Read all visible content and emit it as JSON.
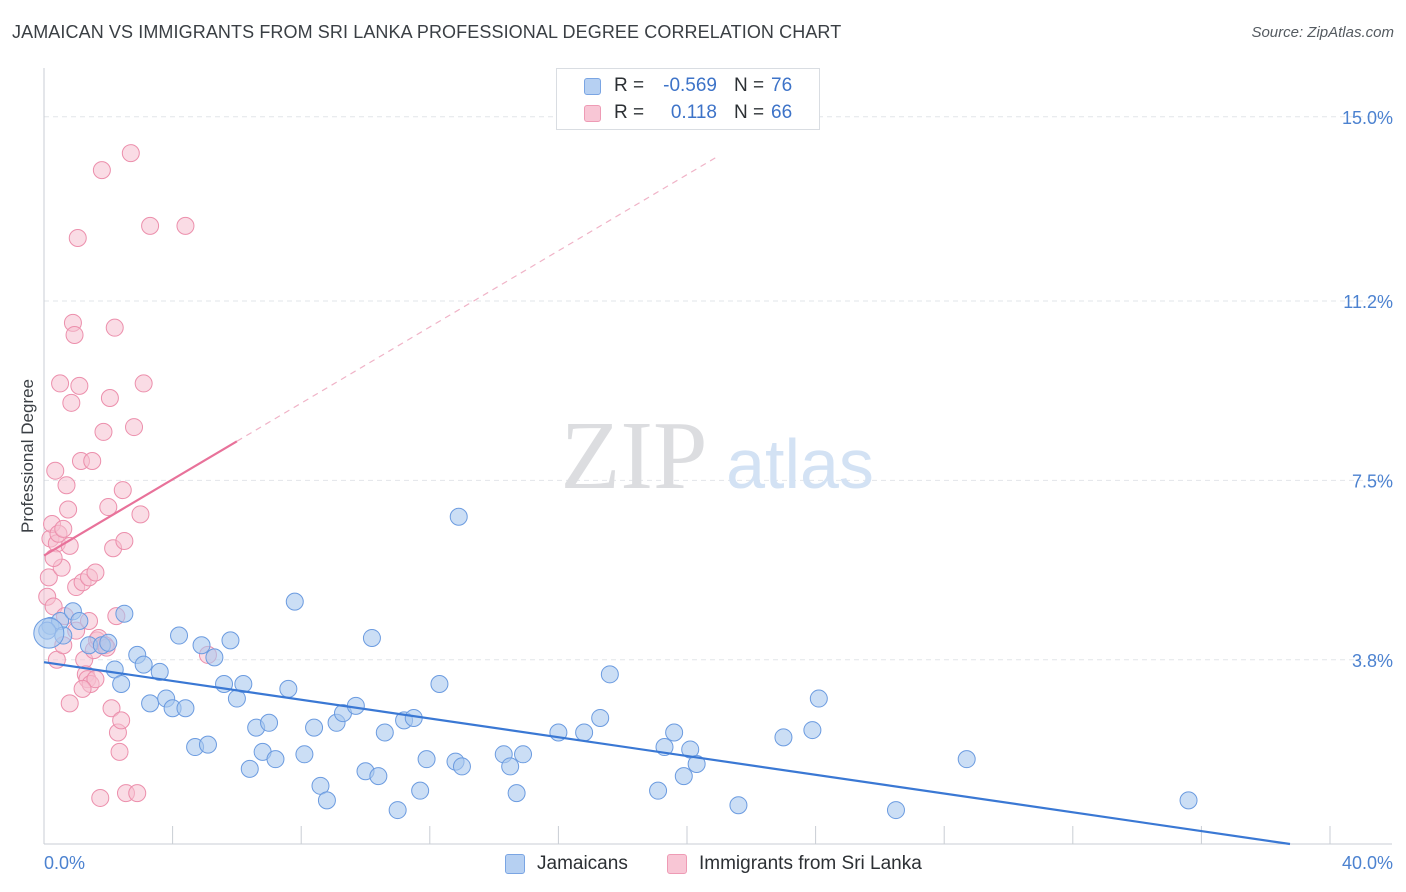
{
  "header": {
    "title": "JAMAICAN VS IMMIGRANTS FROM SRI LANKA PROFESSIONAL DEGREE CORRELATION CHART",
    "source": "Source: ZipAtlas.com"
  },
  "watermark": {
    "zip": "ZIP",
    "atlas": "atlas"
  },
  "legend": {
    "rows": [
      {
        "r_label": "R =",
        "r_value": "-0.569",
        "n_label": "N =",
        "n_value": "76"
      },
      {
        "r_label": "R =",
        "r_value": "0.118",
        "n_label": "N =",
        "n_value": "66"
      }
    ]
  },
  "bottom_legend": {
    "items": [
      {
        "label": "Jamaicans"
      },
      {
        "label": "Immigrants from Sri Lanka"
      }
    ]
  },
  "colors": {
    "blue_fill": "#a9c8ef",
    "blue_stroke": "#6b9be0",
    "blue_line": "#3a78d4",
    "pink_fill": "#f6bfd0",
    "pink_stroke": "#ec8fac",
    "pink_line": "#e8729a",
    "grid": "#e2e5e9",
    "tick_label": "#4c82d0"
  },
  "chart_data": {
    "type": "scatter",
    "title": "JAMAICAN VS IMMIGRANTS FROM SRI LANKA PROFESSIONAL DEGREE CORRELATION CHART",
    "xlabel": "",
    "ylabel": "Professional Degree",
    "xlim": [
      0,
      40
    ],
    "ylim": [
      0,
      15.8
    ],
    "x_tick_labels": [
      "0.0%",
      "40.0%"
    ],
    "y_ticks": [
      3.8,
      7.5,
      11.2,
      15.0
    ],
    "y_tick_labels": [
      "3.8%",
      "7.5%",
      "11.2%",
      "15.0%"
    ],
    "grid": true,
    "legend_position": "top-center",
    "series": [
      {
        "name": "Jamaicans",
        "r": -0.569,
        "n": 76,
        "trend": {
          "x0": 0,
          "y0": 3.75,
          "x1": 40,
          "y1": 0.0,
          "solid_until": 40
        },
        "points": [
          [
            0.2,
            4.5
          ],
          [
            0.5,
            4.6
          ],
          [
            0.9,
            4.8
          ],
          [
            0.6,
            4.3
          ],
          [
            1.1,
            4.6
          ],
          [
            1.4,
            4.1
          ],
          [
            1.8,
            4.1
          ],
          [
            2.0,
            4.15
          ],
          [
            2.2,
            3.6
          ],
          [
            2.4,
            3.3
          ],
          [
            2.5,
            4.75
          ],
          [
            2.9,
            3.9
          ],
          [
            3.1,
            3.7
          ],
          [
            3.3,
            2.9
          ],
          [
            3.6,
            3.55
          ],
          [
            3.8,
            3.0
          ],
          [
            4.0,
            2.8
          ],
          [
            4.2,
            4.3
          ],
          [
            4.4,
            2.8
          ],
          [
            4.7,
            2.0
          ],
          [
            4.9,
            4.1
          ],
          [
            5.1,
            2.05
          ],
          [
            5.3,
            3.85
          ],
          [
            5.6,
            3.3
          ],
          [
            5.8,
            4.2
          ],
          [
            6.0,
            3.0
          ],
          [
            6.2,
            3.3
          ],
          [
            6.4,
            1.55
          ],
          [
            6.6,
            2.4
          ],
          [
            6.8,
            1.9
          ],
          [
            7.0,
            2.5
          ],
          [
            7.2,
            1.75
          ],
          [
            7.6,
            3.2
          ],
          [
            7.8,
            5.0
          ],
          [
            8.1,
            1.85
          ],
          [
            8.4,
            2.4
          ],
          [
            8.6,
            1.2
          ],
          [
            8.8,
            0.9
          ],
          [
            9.1,
            2.5
          ],
          [
            9.3,
            2.7
          ],
          [
            9.7,
            2.85
          ],
          [
            10.0,
            1.5
          ],
          [
            10.2,
            4.25
          ],
          [
            10.4,
            1.4
          ],
          [
            10.6,
            2.3
          ],
          [
            11.0,
            0.7
          ],
          [
            11.2,
            2.55
          ],
          [
            11.5,
            2.6
          ],
          [
            11.7,
            1.1
          ],
          [
            11.9,
            1.75
          ],
          [
            12.3,
            3.3
          ],
          [
            12.8,
            1.7
          ],
          [
            13.0,
            1.6
          ],
          [
            12.9,
            6.75
          ],
          [
            14.3,
            1.85
          ],
          [
            14.5,
            1.6
          ],
          [
            14.7,
            1.05
          ],
          [
            14.9,
            1.85
          ],
          [
            16.0,
            2.3
          ],
          [
            16.8,
            2.3
          ],
          [
            17.3,
            2.6
          ],
          [
            17.6,
            3.5
          ],
          [
            19.1,
            1.1
          ],
          [
            19.3,
            2.0
          ],
          [
            19.6,
            2.3
          ],
          [
            19.9,
            1.4
          ],
          [
            20.1,
            1.95
          ],
          [
            20.3,
            1.65
          ],
          [
            21.6,
            0.8
          ],
          [
            23.0,
            2.2
          ],
          [
            23.9,
            2.35
          ],
          [
            24.1,
            3.0
          ],
          [
            26.5,
            0.7
          ],
          [
            28.7,
            1.75
          ],
          [
            35.6,
            0.9
          ],
          [
            0.1,
            4.4
          ]
        ],
        "big_point": [
          0.15,
          4.35
        ]
      },
      {
        "name": "Immigrants from Sri Lanka",
        "r": 0.118,
        "n": 66,
        "trend": {
          "x0": 0,
          "y0": 5.95,
          "x1": 21.0,
          "y1": 14.2,
          "solid_until": 6.0
        },
        "points": [
          [
            0.1,
            5.1
          ],
          [
            0.15,
            5.5
          ],
          [
            0.2,
            6.3
          ],
          [
            0.25,
            6.6
          ],
          [
            0.3,
            4.9
          ],
          [
            0.35,
            7.7
          ],
          [
            0.4,
            6.2
          ],
          [
            0.45,
            6.4
          ],
          [
            0.5,
            9.5
          ],
          [
            0.55,
            5.7
          ],
          [
            0.6,
            6.5
          ],
          [
            0.65,
            4.7
          ],
          [
            0.7,
            7.4
          ],
          [
            0.75,
            6.9
          ],
          [
            0.8,
            6.15
          ],
          [
            0.85,
            9.1
          ],
          [
            0.9,
            10.75
          ],
          [
            0.95,
            10.5
          ],
          [
            1.0,
            5.3
          ],
          [
            1.05,
            12.5
          ],
          [
            1.1,
            9.45
          ],
          [
            1.15,
            7.9
          ],
          [
            1.2,
            5.4
          ],
          [
            1.25,
            3.8
          ],
          [
            1.3,
            3.5
          ],
          [
            1.35,
            3.4
          ],
          [
            1.4,
            5.5
          ],
          [
            1.45,
            3.3
          ],
          [
            1.5,
            7.9
          ],
          [
            1.55,
            4.0
          ],
          [
            1.6,
            3.4
          ],
          [
            1.65,
            4.2
          ],
          [
            1.7,
            4.25
          ],
          [
            1.75,
            0.95
          ],
          [
            1.8,
            13.9
          ],
          [
            1.85,
            8.5
          ],
          [
            1.9,
            4.1
          ],
          [
            1.95,
            4.05
          ],
          [
            2.0,
            6.95
          ],
          [
            2.05,
            9.2
          ],
          [
            2.1,
            2.8
          ],
          [
            2.15,
            6.1
          ],
          [
            2.2,
            10.65
          ],
          [
            2.25,
            4.7
          ],
          [
            2.3,
            2.3
          ],
          [
            2.35,
            1.9
          ],
          [
            2.4,
            2.55
          ],
          [
            2.45,
            7.3
          ],
          [
            2.5,
            6.25
          ],
          [
            2.55,
            1.05
          ],
          [
            2.7,
            14.25
          ],
          [
            2.8,
            8.6
          ],
          [
            2.9,
            1.05
          ],
          [
            3.0,
            6.8
          ],
          [
            3.1,
            9.5
          ],
          [
            3.3,
            12.75
          ],
          [
            4.4,
            12.75
          ],
          [
            0.4,
            3.8
          ],
          [
            0.6,
            4.1
          ],
          [
            0.8,
            2.9
          ],
          [
            1.0,
            4.4
          ],
          [
            1.2,
            3.2
          ],
          [
            1.4,
            4.6
          ],
          [
            1.6,
            5.6
          ],
          [
            5.1,
            3.9
          ],
          [
            0.3,
            5.9
          ]
        ]
      }
    ]
  }
}
